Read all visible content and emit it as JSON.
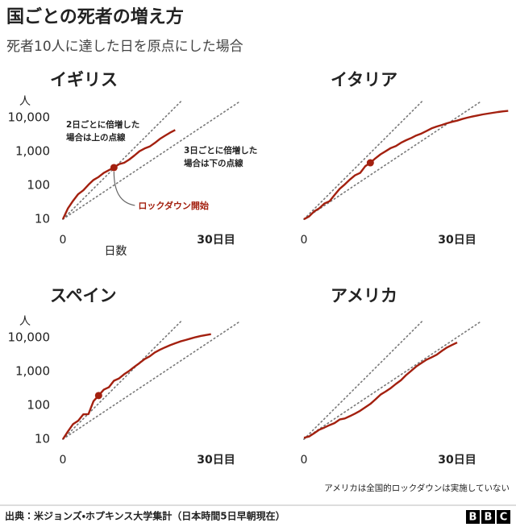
{
  "title": "国ごとの死者の増え方",
  "subtitle": "死者10人に達した日を原点にした場合",
  "source": "出典：米ジョンズ・ホプキンス大学集計（日本時間5日早朝現在）",
  "brand": [
    "B",
    "B",
    "C"
  ],
  "chart_data": [
    {
      "type": "line",
      "title": "イギリス",
      "y_label": "人",
      "x_label": "日数",
      "log_y": true,
      "xlim": [
        -1,
        41
      ],
      "ylim": [
        10,
        30000
      ],
      "xticks": [
        0,
        {
          "value": 30,
          "label": "30日目"
        }
      ],
      "yticks": [
        10,
        100,
        {
          "value": 1000,
          "label": "1,000"
        },
        {
          "value": 10000,
          "label": "10,000"
        }
      ],
      "x": [
        0,
        1,
        2,
        3,
        4,
        5,
        6,
        7,
        8,
        9,
        10,
        11,
        12,
        13,
        14,
        15,
        16,
        17,
        18,
        19,
        20,
        21,
        22
      ],
      "series": [
        {
          "color": "#a3200f",
          "values": [
            10,
            21,
            35,
            55,
            71,
            104,
            144,
            177,
            233,
            281,
            335,
            422,
            465,
            578,
            759,
            1019,
            1228,
            1408,
            1789,
            2352,
            2921,
            3605,
            4313
          ]
        }
      ],
      "marker_day": 10,
      "marker_label": "ロックダウン開始",
      "reference_lines": [
        {
          "doubling_days": 2,
          "label": [
            "2日ごとに倍増した",
            "場合は上の点線"
          ]
        },
        {
          "doubling_days": 3,
          "label": [
            "3日ごとに倍増した",
            "場合は下の点線"
          ]
        }
      ]
    },
    {
      "type": "line",
      "title": "イタリア",
      "log_y": true,
      "xlim": [
        -1,
        40
      ],
      "ylim": [
        10,
        30000
      ],
      "xticks": [
        0,
        {
          "value": 30,
          "label": "30日目"
        }
      ],
      "x": [
        0,
        1,
        2,
        3,
        4,
        5,
        6,
        7,
        8,
        9,
        10,
        11,
        12,
        13,
        14,
        15,
        16,
        17,
        18,
        19,
        20,
        21,
        22,
        23,
        24,
        25,
        26,
        27,
        28,
        29,
        30,
        31,
        32,
        33,
        34,
        35,
        36,
        37,
        38,
        39,
        40
      ],
      "series": [
        {
          "color": "#a3200f",
          "values": [
            10,
            12,
            17,
            21,
            29,
            34,
            52,
            79,
            107,
            148,
            197,
            233,
            366,
            463,
            631,
            827,
            1016,
            1266,
            1441,
            1809,
            2158,
            2503,
            2978,
            3405,
            4032,
            4825,
            5476,
            6077,
            6820,
            7503,
            8165,
            9134,
            10023,
            10779,
            11591,
            12428,
            13155,
            13915,
            14681,
            15362,
            15887
          ]
        }
      ],
      "marker_day": 13,
      "reference_lines": [
        {
          "doubling_days": 2
        },
        {
          "doubling_days": 3
        }
      ]
    },
    {
      "type": "line",
      "title": "スペイン",
      "y_label": "人",
      "log_y": true,
      "xlim": [
        -1,
        41
      ],
      "ylim": [
        10,
        30000
      ],
      "xticks": [
        0,
        {
          "value": 30,
          "label": "30日目"
        }
      ],
      "yticks": [
        10,
        100,
        {
          "value": 1000,
          "label": "1,000"
        },
        {
          "value": 10000,
          "label": "10,000"
        }
      ],
      "x": [
        0,
        1,
        2,
        3,
        4,
        5,
        6,
        7,
        8,
        9,
        10,
        11,
        12,
        13,
        14,
        15,
        16,
        17,
        18,
        19,
        20,
        21,
        22,
        23,
        24,
        25,
        26,
        27,
        28,
        29
      ],
      "series": [
        {
          "color": "#a3200f",
          "values": [
            10,
            17,
            28,
            35,
            54,
            55,
            133,
            195,
            289,
            342,
            533,
            623,
            830,
            1043,
            1375,
            1772,
            2311,
            2808,
            3647,
            4365,
            5138,
            5982,
            6803,
            7716,
            8464,
            9387,
            10348,
            11198,
            11947,
            12641
          ]
        }
      ],
      "marker_day": 7,
      "reference_lines": [
        {
          "doubling_days": 2
        },
        {
          "doubling_days": 3
        }
      ]
    },
    {
      "type": "line",
      "title": "アメリカ",
      "log_y": true,
      "xlim": [
        -1,
        40
      ],
      "ylim": [
        10,
        30000
      ],
      "xticks": [
        0,
        {
          "value": 30,
          "label": "30日目"
        }
      ],
      "x": [
        0,
        1,
        2,
        3,
        4,
        5,
        6,
        7,
        8,
        9,
        10,
        11,
        12,
        13,
        14,
        15,
        16,
        17,
        18,
        19,
        20,
        21,
        22,
        23,
        24,
        25,
        26,
        27,
        28,
        29,
        30
      ],
      "series": [
        {
          "color": "#a3200f",
          "values": [
            11,
            12,
            15,
            19,
            22,
            26,
            30,
            38,
            41,
            48,
            57,
            69,
            87,
            110,
            150,
            207,
            256,
            323,
            427,
            550,
            783,
            1042,
            1405,
            1779,
            2222,
            2629,
            3121,
            4057,
            5102,
            6076,
            7153
          ]
        }
      ],
      "note": "アメリカは全国的ロックダウンは実施していない",
      "reference_lines": [
        {
          "doubling_days": 2
        },
        {
          "doubling_days": 3
        }
      ]
    }
  ]
}
